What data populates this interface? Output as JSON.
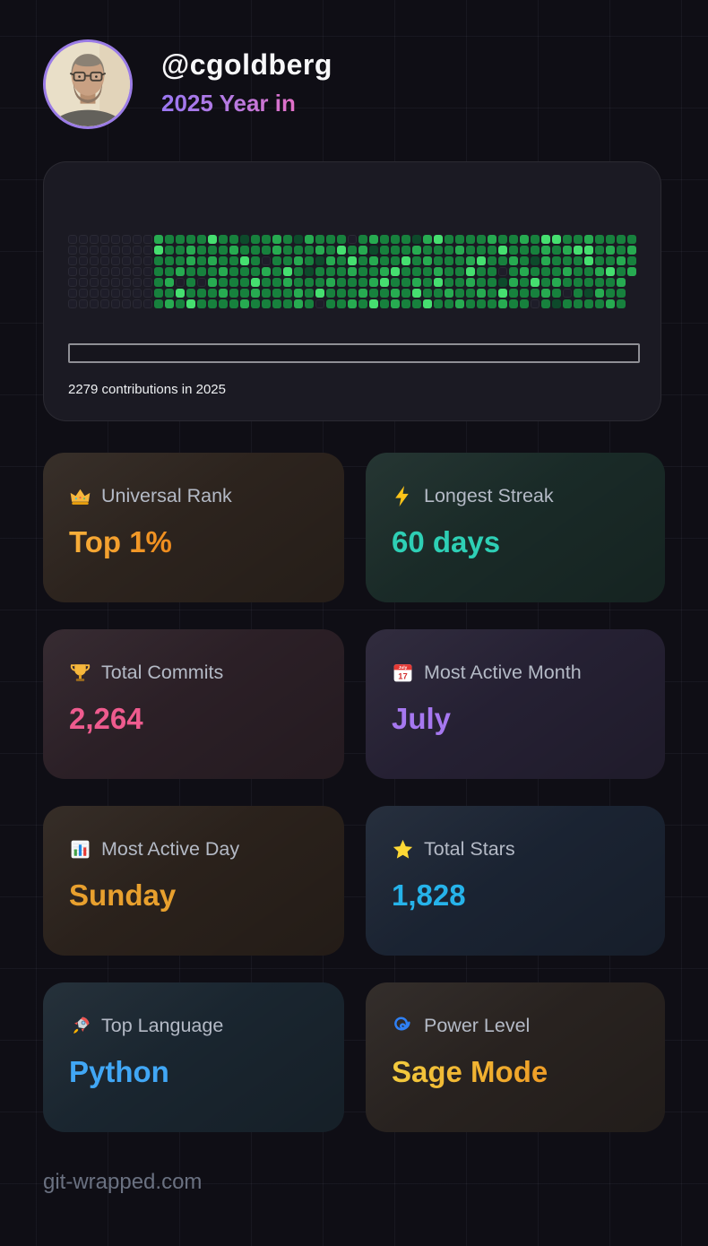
{
  "header": {
    "username": "@cgoldberg",
    "subtitle": "2025 Year in",
    "avatar_ring_color": "#9b7ce6"
  },
  "contributions": {
    "caption": "2279 contributions in 2025",
    "total": 2279,
    "year": 2025,
    "palette": {
      "0": "#1e1d29",
      "1": "#0d4a2b",
      "2": "#17813d",
      "3": "#27ab51",
      "4": "#46df70"
    },
    "grid_rows": [
      "00000000322224221223213222023222134222232232442232222",
      "00000000422322232223222324231222322232224222323442323",
      "00000000222323224202232132423224232223422321322242232",
      "00000000223222322232421222322342223224220232223223423",
      "0000000023020322242232223222342232422322132423222223-",
      "0000000022422232232223242223223242232232422232021322-",
      "0000000023242222322223202232423224223222322021222232-"
    ]
  },
  "stats": [
    {
      "icon": "crown-icon",
      "label": "Universal Rank",
      "value": "Top 1%",
      "value_color": "#f8b13c",
      "value_color2": "#ee8a1c",
      "bg": "#2d241e"
    },
    {
      "icon": "lightning-icon",
      "label": "Longest Streak",
      "value": "60 days",
      "value_color": "#2ecfb5",
      "bg": "#1a2b28"
    },
    {
      "icon": "trophy-icon",
      "label": "Total Commits",
      "value": "2,264",
      "value_color": "#ee5b8e",
      "bg": "#2c2027"
    },
    {
      "icon": "calendar-icon",
      "label": "Most Active Month",
      "value": "July",
      "value_color": "#a678f0",
      "bg": "#262134"
    },
    {
      "icon": "bar-chart-icon",
      "label": "Most Active Day",
      "value": "Sunday",
      "value_color": "#e8a02e",
      "bg": "#2b221c"
    },
    {
      "icon": "star-icon",
      "label": "Total Stars",
      "value": "1,828",
      "value_color": "#26b3ea",
      "bg": "#1b2433"
    },
    {
      "icon": "rocket-icon",
      "label": "Top Language",
      "value": "Python",
      "value_color": "#41a7f5",
      "bg": "#1a2630"
    },
    {
      "icon": "cyclone-icon",
      "label": "Power Level",
      "value": "Sage Mode",
      "value_color": "#f3cd3f",
      "value_color2": "#ef9c26",
      "bg": "#292320"
    }
  ],
  "footer": {
    "site": "git-wrapped.com"
  }
}
